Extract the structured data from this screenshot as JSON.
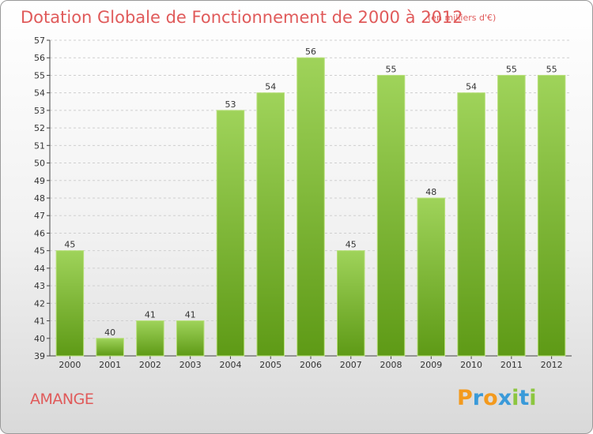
{
  "title": "Dotation Globale de Fonctionnement de 2000 à 2012",
  "unit": "(en milliers d'€)",
  "commune": "AMANGE",
  "logo": {
    "text": "Proxiti",
    "letters": [
      {
        "ch": "P",
        "color": "#f39a1e"
      },
      {
        "ch": "r",
        "color": "#3a9ad9"
      },
      {
        "ch": "o",
        "color": "#f39a1e"
      },
      {
        "ch": "x",
        "color": "#3a9ad9"
      },
      {
        "ch": "i",
        "color": "#8cc63f"
      },
      {
        "ch": "t",
        "color": "#3a9ad9"
      },
      {
        "ch": "i",
        "color": "#8cc63f"
      }
    ]
  },
  "colors": {
    "bar_top": "#9fd35a",
    "bar_bottom": "#5e9a16",
    "accent": "#e05a5a"
  },
  "chart_data": {
    "type": "bar",
    "title": "Dotation Globale de Fonctionnement de 2000 à 2012",
    "categories": [
      "2000",
      "2001",
      "2002",
      "2003",
      "2004",
      "2005",
      "2006",
      "2007",
      "2008",
      "2009",
      "2010",
      "2011",
      "2012"
    ],
    "values": [
      45,
      40,
      41,
      41,
      53,
      54,
      56,
      45,
      55,
      48,
      54,
      55,
      55
    ],
    "ylim": [
      39,
      57
    ],
    "yticks": [
      39,
      40,
      41,
      42,
      43,
      44,
      45,
      46,
      47,
      48,
      49,
      50,
      51,
      52,
      53,
      54,
      55,
      56,
      57
    ],
    "grid": true,
    "data_labels": true
  }
}
